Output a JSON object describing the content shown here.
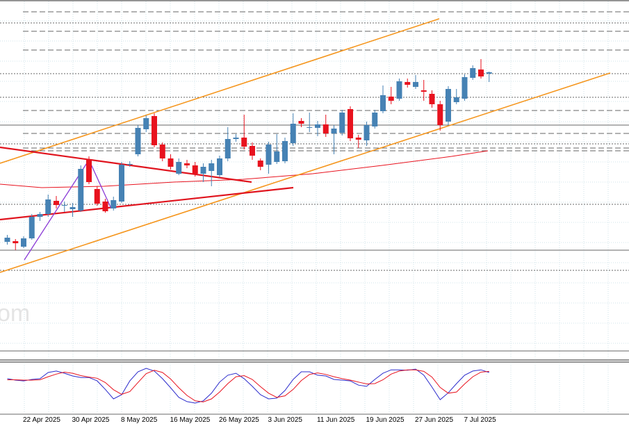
{
  "chart_data": {
    "type": "candlestick",
    "watermark": "om",
    "categories": [
      null,
      null,
      "22 Apr 2025",
      null,
      null,
      null,
      null,
      null,
      "30 Apr 2025",
      null,
      null,
      null,
      null,
      null,
      "8 May 2025",
      null,
      null,
      null,
      null,
      null,
      "16 May 2025",
      null,
      null,
      null,
      null,
      null,
      "26 May 2025",
      null,
      null,
      null,
      null,
      null,
      "3 Jun 2025",
      null,
      null,
      null,
      null,
      null,
      "11 Jun 2025",
      null,
      null,
      null,
      null,
      null,
      "19 Jun 2025",
      null,
      null,
      null,
      null,
      null,
      "27 Jun 2025",
      null,
      null,
      null,
      null,
      null,
      "7 Jul 2025",
      null,
      null,
      null
    ],
    "open": [
      172,
      173,
      165,
      177,
      208,
      212,
      231,
      224,
      219,
      217,
      291,
      248,
      230,
      220,
      230,
      283,
      298,
      334,
      353,
      312,
      292,
      270,
      285,
      282,
      270,
      274,
      268,
      292,
      320,
      322,
      310,
      289,
      283,
      287,
      288,
      314,
      346,
      336,
      336,
      341,
      328,
      329,
      363,
      322,
      318,
      338,
      360,
      381,
      378,
      402,
      395,
      390,
      385,
      370,
      345,
      373,
      378,
      408,
      420,
      414
    ],
    "high": [
      182,
      176,
      180,
      212,
      215,
      240,
      238,
      230,
      228,
      282,
      295,
      252,
      234,
      237,
      287,
      288,
      340,
      354,
      357,
      315,
      298,
      292,
      290,
      287,
      285,
      290,
      296,
      337,
      327,
      355,
      315,
      292,
      316,
      327,
      322,
      357,
      350,
      358,
      346,
      355,
      340,
      362,
      367,
      326,
      345,
      362,
      397,
      395,
      407,
      407,
      412,
      405,
      390,
      375,
      396,
      392,
      413,
      426,
      435,
      417
    ],
    "low": [
      168,
      160,
      163,
      175,
      202,
      208,
      220,
      215,
      208,
      215,
      255,
      224,
      214,
      217,
      228,
      280,
      295,
      330,
      308,
      288,
      276,
      268,
      278,
      266,
      258,
      252,
      265,
      288,
      316,
      305,
      290,
      275,
      270,
      284,
      285,
      310,
      337,
      330,
      324,
      323,
      298,
      325,
      317,
      307,
      310,
      335,
      357,
      370,
      375,
      394,
      392,
      375,
      365,
      332,
      340,
      370,
      375,
      405,
      407,
      402
    ],
    "close": [
      178,
      170,
      177,
      208,
      212,
      233,
      225,
      225,
      222,
      277,
      258,
      227,
      216,
      232,
      283,
      284,
      336,
      350,
      311,
      292,
      280,
      287,
      282,
      270,
      280,
      285,
      292,
      320,
      322,
      309,
      296,
      280,
      312,
      302,
      317,
      342,
      342,
      337,
      341,
      328,
      335,
      358,
      321,
      319,
      340,
      358,
      383,
      375,
      403,
      398,
      402,
      388,
      370,
      340,
      392,
      380,
      409,
      422,
      410,
      416
    ],
    "up_color": "#4682b4",
    "down_color": "#e8121e",
    "ylim": [
      0,
      520
    ],
    "oscillator": {
      "ylim": [
        0,
        100
      ],
      "series": [
        {
          "color": "#2b2bcc",
          "values": [
            73,
            69,
            67,
            71,
            73,
            89,
            93,
            87,
            80,
            76,
            76,
            67,
            45,
            20,
            31,
            67,
            91,
            100,
            93,
            73,
            49,
            24,
            13,
            9,
            15,
            35,
            64,
            82,
            87,
            73,
            53,
            31,
            20,
            22,
            42,
            71,
            91,
            91,
            82,
            80,
            71,
            69,
            67,
            56,
            53,
            71,
            87,
            96,
            96,
            95,
            98,
            82,
            51,
            18,
            36,
            60,
            82,
            93,
            96,
            89
          ]
        },
        {
          "color": "#e8121e",
          "values": [
            70,
            70,
            69,
            69,
            70,
            78,
            85,
            90,
            87,
            81,
            77,
            74,
            63,
            44,
            32,
            39,
            63,
            86,
            95,
            89,
            72,
            49,
            29,
            15,
            12,
            20,
            38,
            60,
            78,
            81,
            71,
            52,
            35,
            24,
            28,
            45,
            68,
            84,
            88,
            84,
            78,
            73,
            69,
            64,
            59,
            60,
            70,
            85,
            93,
            96,
            96,
            92,
            77,
            50,
            35,
            38,
            59,
            78,
            90,
            92
          ]
        }
      ]
    }
  }
}
